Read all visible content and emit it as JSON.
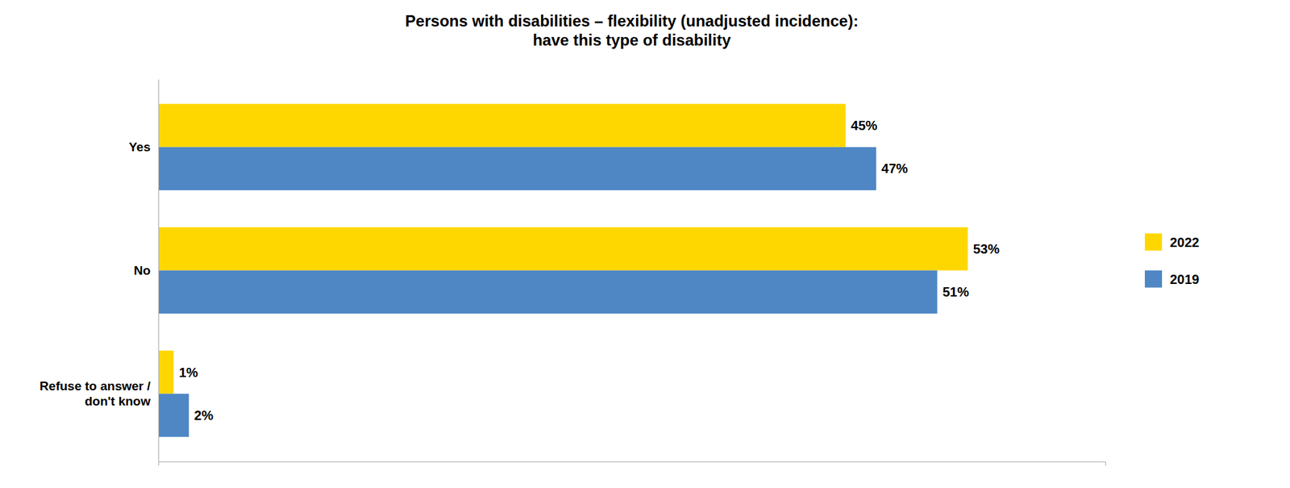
{
  "chart_data": {
    "type": "bar",
    "orientation": "horizontal",
    "title": "Persons with disabilities – flexibility (unadjusted incidence):\nhave this type of disability",
    "categories": [
      "Refuse to answer /\ndon't know",
      "No",
      "Yes"
    ],
    "series": [
      {
        "name": "2022",
        "color": "#FFD700",
        "values": [
          1,
          53,
          45
        ],
        "value_labels": [
          "1%",
          "53%",
          "45%"
        ]
      },
      {
        "name": "2019",
        "color": "#4E87C4",
        "values": [
          2,
          51,
          47
        ],
        "value_labels": [
          "2%",
          "51%",
          "47%"
        ]
      }
    ],
    "xlim": [
      0,
      62
    ],
    "xticks": [],
    "data_labels": true,
    "tick_labels": "y",
    "legend": "right",
    "grid": false
  }
}
